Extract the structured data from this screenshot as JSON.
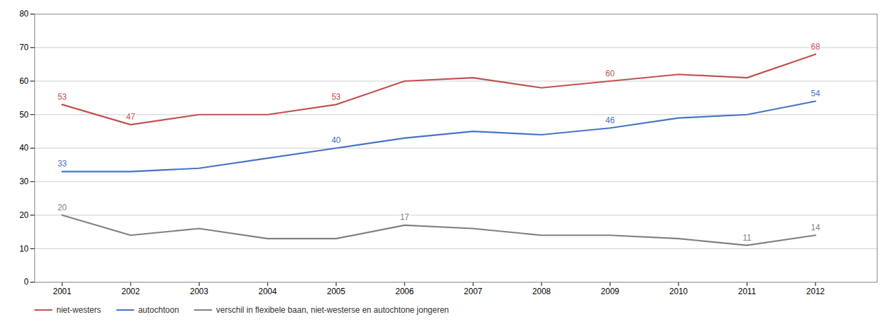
{
  "chart_data": {
    "type": "line",
    "x": [
      2001,
      2002,
      2003,
      2004,
      2005,
      2006,
      2007,
      2008,
      2009,
      2010,
      2011,
      2012
    ],
    "series": [
      {
        "name": "niet-westers",
        "color": "#C0504D",
        "values": [
          53,
          47,
          50,
          50,
          53,
          60,
          61,
          58,
          60,
          62,
          61,
          68
        ],
        "value_labels": [
          "53",
          "47",
          null,
          null,
          "53",
          null,
          null,
          null,
          "60",
          null,
          null,
          "68"
        ]
      },
      {
        "name": "autochtoon",
        "color": "#4472C4",
        "values": [
          33,
          33,
          34,
          37,
          40,
          43,
          45,
          44,
          46,
          49,
          50,
          54
        ],
        "value_labels": [
          "33",
          null,
          null,
          null,
          "40",
          null,
          null,
          null,
          "46",
          null,
          null,
          "54"
        ]
      },
      {
        "name": "verschil in flexibele baan, niet-westerse en autochtone jongeren",
        "color": "#7F7F7F",
        "values": [
          20,
          14,
          16,
          13,
          13,
          17,
          16,
          14,
          14,
          13,
          11,
          14
        ],
        "value_labels": [
          "20",
          null,
          null,
          null,
          null,
          "17",
          null,
          null,
          null,
          null,
          "11",
          "14"
        ]
      }
    ],
    "xlim": [
      2000.6,
      2012.9
    ],
    "xticks": [
      2001,
      2002,
      2003,
      2004,
      2005,
      2006,
      2007,
      2008,
      2009,
      2010,
      2011,
      2012
    ],
    "ylim": [
      0,
      80
    ],
    "yticks": [
      0,
      10,
      20,
      30,
      40,
      50,
      60,
      70,
      80
    ],
    "grid": true,
    "data_labels": true,
    "legend": "bottom"
  }
}
